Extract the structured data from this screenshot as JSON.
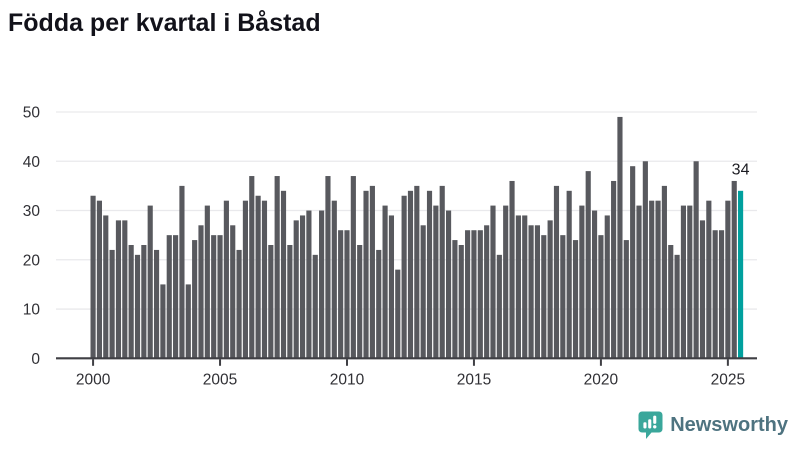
{
  "page": {
    "title": "Födda per kvartal i Båstad"
  },
  "footer": {
    "brand": "Newsworthy"
  },
  "colors": {
    "bar": "#58595e",
    "highlight": "#00a09e",
    "grid": "#e9e9ec",
    "axis": "#3f3f44",
    "tick_text": "#303035",
    "annotation_text": "#1c1c22",
    "logo": "#3aa79b"
  },
  "chart_data": {
    "type": "bar",
    "title": "Födda per kvartal i Båstad",
    "x_start": "2000 Q1",
    "x_end": "2025 Q3",
    "ylim": [
      0,
      50
    ],
    "y_ticks": [
      0,
      10,
      20,
      30,
      40,
      50
    ],
    "x_tick_labels": [
      "2000",
      "2005",
      "2010",
      "2015",
      "2020",
      "2025"
    ],
    "grid": true,
    "legend": false,
    "values": [
      33,
      32,
      29,
      22,
      28,
      28,
      23,
      21,
      23,
      31,
      22,
      15,
      25,
      25,
      35,
      15,
      24,
      27,
      31,
      25,
      25,
      32,
      27,
      22,
      32,
      37,
      33,
      32,
      23,
      37,
      34,
      23,
      28,
      29,
      30,
      21,
      30,
      37,
      32,
      26,
      26,
      37,
      23,
      34,
      35,
      22,
      31,
      29,
      18,
      33,
      34,
      35,
      27,
      34,
      31,
      35,
      30,
      24,
      23,
      26,
      26,
      26,
      27,
      31,
      21,
      31,
      36,
      29,
      29,
      27,
      27,
      25,
      28,
      35,
      25,
      34,
      24,
      31,
      38,
      30,
      25,
      29,
      36,
      49,
      24,
      39,
      31,
      40,
      32,
      32,
      35,
      23,
      21,
      31,
      31,
      40,
      28,
      32,
      26,
      26,
      32,
      36,
      34
    ],
    "highlight": {
      "index": 102,
      "quarter": "2025 Q3",
      "value": 34,
      "label": "34"
    }
  }
}
